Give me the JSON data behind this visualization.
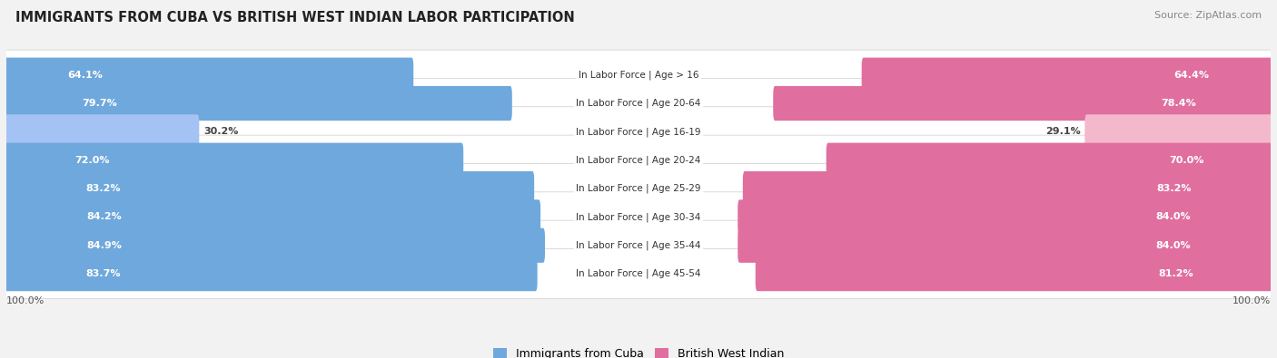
{
  "title": "IMMIGRANTS FROM CUBA VS BRITISH WEST INDIAN LABOR PARTICIPATION",
  "source": "Source: ZipAtlas.com",
  "categories": [
    "In Labor Force | Age > 16",
    "In Labor Force | Age 20-64",
    "In Labor Force | Age 16-19",
    "In Labor Force | Age 20-24",
    "In Labor Force | Age 25-29",
    "In Labor Force | Age 30-34",
    "In Labor Force | Age 35-44",
    "In Labor Force | Age 45-54"
  ],
  "cuba_values": [
    64.1,
    79.7,
    30.2,
    72.0,
    83.2,
    84.2,
    84.9,
    83.7
  ],
  "bwi_values": [
    64.4,
    78.4,
    29.1,
    70.0,
    83.2,
    84.0,
    84.0,
    81.2
  ],
  "cuba_color": "#6fa8dc",
  "cuba_color_light": "#a4c2f4",
  "bwi_color": "#e06fa0",
  "bwi_color_light": "#f4b8cc",
  "bg_color": "#f2f2f2",
  "row_bg": "#ffffff",
  "row_sep": "#e0e0e0",
  "max_val": 100.0,
  "legend_cuba": "Immigrants from Cuba",
  "legend_bwi": "British West Indian"
}
